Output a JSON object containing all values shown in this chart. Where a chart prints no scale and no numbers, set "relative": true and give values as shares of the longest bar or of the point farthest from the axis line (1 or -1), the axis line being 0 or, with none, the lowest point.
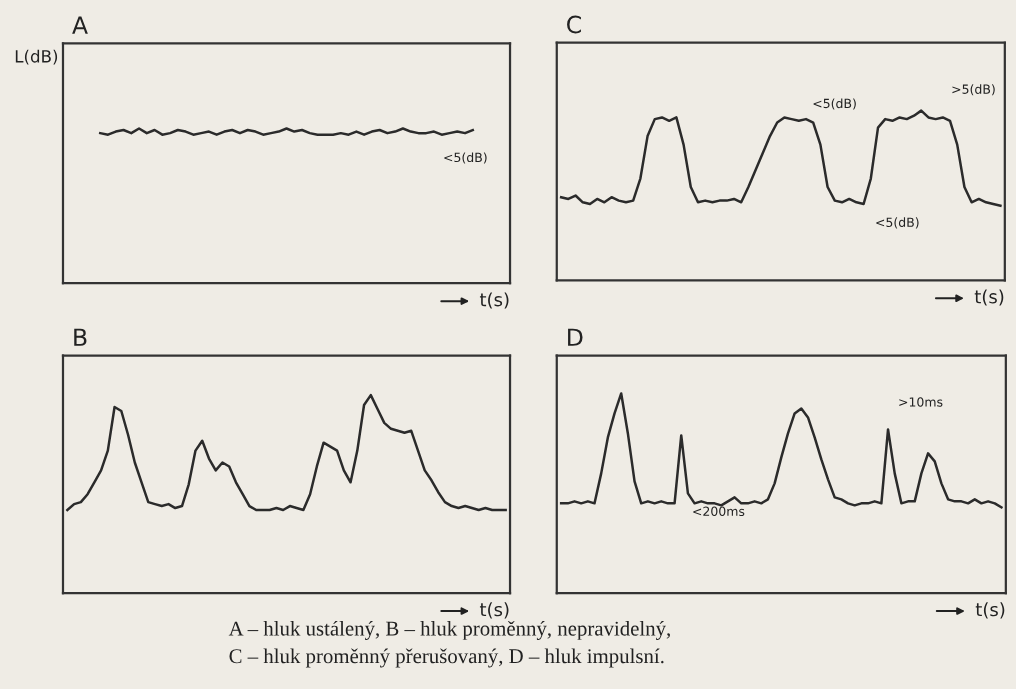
{
  "chart_data": [
    {
      "type": "line",
      "title": "A",
      "ylabel": "L(dB)",
      "xlabel": "t(s)",
      "relative": true,
      "categories": [
        null,
        null,
        null,
        null,
        null,
        null,
        null,
        null,
        null,
        null,
        null,
        null,
        null,
        null,
        null,
        null,
        null,
        null,
        null,
        null,
        null,
        null,
        null,
        null,
        null,
        null,
        null,
        null,
        null,
        null,
        null,
        null,
        null,
        null,
        null,
        null,
        null,
        null,
        null,
        null,
        null,
        null,
        null,
        null,
        null,
        null,
        null,
        null,
        null
      ],
      "series": [
        {
          "color": "#2b2b2b",
          "values": [
            0.97,
            0.96,
            0.98,
            0.99,
            0.97,
            1.0,
            0.97,
            0.99,
            0.96,
            0.97,
            0.99,
            0.98,
            0.96,
            0.97,
            0.98,
            0.96,
            0.98,
            0.99,
            0.97,
            0.99,
            0.98,
            0.96,
            0.97,
            0.98,
            1.0,
            0.98,
            0.99,
            0.97,
            0.96,
            0.96,
            0.96,
            0.97,
            0.96,
            0.98,
            0.96,
            0.98,
            0.99,
            0.97,
            0.98,
            1.0,
            0.98,
            0.97,
            0.97,
            0.98,
            0.96,
            0.97,
            0.98,
            0.97,
            0.99
          ]
        }
      ],
      "annotations": [
        "<5(dB)"
      ]
    },
    {
      "type": "line",
      "title": "B",
      "xlabel": "t(s)",
      "relative": true,
      "categories": [
        null,
        null,
        null,
        null,
        null,
        null,
        null,
        null,
        null,
        null,
        null,
        null,
        null,
        null,
        null,
        null,
        null,
        null,
        null,
        null,
        null,
        null,
        null,
        null,
        null,
        null,
        null,
        null,
        null,
        null,
        null,
        null,
        null,
        null,
        null,
        null,
        null,
        null,
        null,
        null,
        null,
        null,
        null,
        null,
        null,
        null,
        null,
        null,
        null,
        null,
        null,
        null,
        null,
        null,
        null,
        null,
        null,
        null,
        null,
        null,
        null,
        null,
        null,
        null,
        null,
        null
      ],
      "series": [
        {
          "color": "#2b2b2b",
          "values": [
            0.42,
            0.45,
            0.46,
            0.5,
            0.56,
            0.62,
            0.72,
            0.94,
            0.92,
            0.8,
            0.66,
            0.56,
            0.46,
            0.45,
            0.44,
            0.45,
            0.43,
            0.44,
            0.55,
            0.72,
            0.77,
            0.68,
            0.62,
            0.66,
            0.64,
            0.56,
            0.5,
            0.44,
            0.42,
            0.42,
            0.42,
            0.43,
            0.42,
            0.44,
            0.43,
            0.42,
            0.5,
            0.64,
            0.76,
            0.74,
            0.72,
            0.62,
            0.56,
            0.72,
            0.95,
            1.0,
            0.93,
            0.86,
            0.83,
            0.82,
            0.81,
            0.82,
            0.72,
            0.62,
            0.57,
            0.51,
            0.46,
            0.44,
            0.43,
            0.44,
            0.43,
            0.42,
            0.43,
            0.42,
            0.42,
            0.42
          ]
        }
      ]
    },
    {
      "type": "line",
      "title": "C",
      "xlabel": "t(s)",
      "relative": true,
      "categories": [
        null,
        null,
        null,
        null,
        null,
        null,
        null,
        null,
        null,
        null,
        null,
        null,
        null,
        null,
        null,
        null,
        null,
        null,
        null,
        null,
        null,
        null,
        null,
        null,
        null,
        null,
        null,
        null,
        null,
        null,
        null,
        null,
        null,
        null,
        null,
        null,
        null,
        null,
        null,
        null,
        null,
        null,
        null,
        null,
        null,
        null,
        null,
        null,
        null,
        null,
        null,
        null,
        null,
        null,
        null,
        null,
        null,
        null,
        null,
        null,
        null,
        null
      ],
      "series": [
        {
          "color": "#2b2b2b",
          "values": [
            0.49,
            0.48,
            0.5,
            0.46,
            0.45,
            0.48,
            0.46,
            0.49,
            0.47,
            0.46,
            0.47,
            0.6,
            0.85,
            0.95,
            0.96,
            0.94,
            0.96,
            0.8,
            0.55,
            0.46,
            0.47,
            0.46,
            0.47,
            0.47,
            0.48,
            0.46,
            0.55,
            0.65,
            0.75,
            0.85,
            0.93,
            0.96,
            0.95,
            0.94,
            0.95,
            0.93,
            0.8,
            0.55,
            0.47,
            0.46,
            0.48,
            0.46,
            0.45,
            0.6,
            0.9,
            0.95,
            0.94,
            0.96,
            0.95,
            0.97,
            1.0,
            0.96,
            0.95,
            0.96,
            0.94,
            0.8,
            0.55,
            0.46,
            0.48,
            0.46,
            0.45,
            0.44
          ]
        }
      ],
      "annotations": [
        "<5(dB)",
        "<5(dB)",
        ">5(dB)"
      ]
    },
    {
      "type": "line",
      "title": "D",
      "xlabel": "t(s)",
      "relative": true,
      "categories": [
        null,
        null,
        null,
        null,
        null,
        null,
        null,
        null,
        null,
        null,
        null,
        null,
        null,
        null,
        null,
        null,
        null,
        null,
        null,
        null,
        null,
        null,
        null,
        null,
        null,
        null,
        null,
        null,
        null,
        null,
        null,
        null,
        null,
        null,
        null,
        null,
        null,
        null,
        null,
        null,
        null,
        null,
        null,
        null,
        null,
        null,
        null,
        null,
        null,
        null,
        null,
        null,
        null,
        null,
        null,
        null,
        null,
        null,
        null,
        null,
        null,
        null,
        null,
        null,
        null,
        null,
        null
      ],
      "series": [
        {
          "color": "#2b2b2b",
          "values": [
            0.45,
            0.45,
            0.46,
            0.45,
            0.46,
            0.45,
            0.6,
            0.78,
            0.9,
            1.0,
            0.8,
            0.56,
            0.45,
            0.46,
            0.45,
            0.46,
            0.45,
            0.45,
            0.79,
            0.5,
            0.45,
            0.46,
            0.45,
            0.45,
            0.44,
            0.46,
            0.48,
            0.45,
            0.45,
            0.46,
            0.45,
            0.47,
            0.55,
            0.68,
            0.8,
            0.9,
            0.925,
            0.88,
            0.78,
            0.67,
            0.57,
            0.48,
            0.47,
            0.45,
            0.44,
            0.45,
            0.45,
            0.46,
            0.45,
            0.82,
            0.6,
            0.45,
            0.46,
            0.46,
            0.6,
            0.7,
            0.66,
            0.55,
            0.47,
            0.46,
            0.46,
            0.45,
            0.47,
            0.45,
            0.46,
            0.45,
            0.43
          ]
        }
      ],
      "annotations": [
        "<200ms",
        ">10ms",
        "A – hluk ustálený, B – hluk proměnný, nepravidelný,",
        "C – hluk proměnný přerušovaný, D – hluk impulsní."
      ]
    }
  ]
}
